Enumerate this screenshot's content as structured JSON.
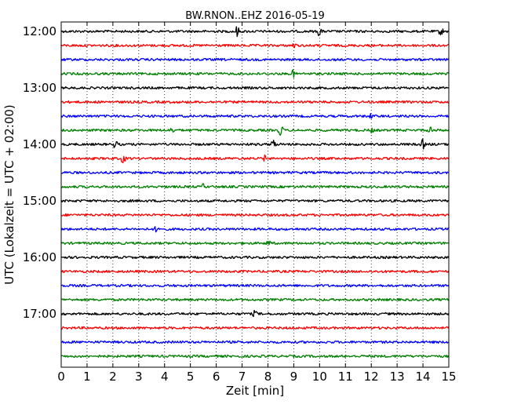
{
  "chart_data": {
    "type": "line",
    "title": "BW.RNON..EHZ 2016-05-19",
    "xlabel": "Zeit  [min]",
    "ylabel": "UTC (Lokalzeit = UTC + 02:00)",
    "xlim": [
      0,
      15
    ],
    "x_ticks": [
      "0",
      "1",
      "2",
      "3",
      "4",
      "5",
      "6",
      "7",
      "8",
      "9",
      "10",
      "11",
      "12",
      "13",
      "14",
      "15"
    ],
    "y_ticks": [
      "12:00",
      "13:00",
      "14:00",
      "15:00",
      "16:00",
      "17:00"
    ],
    "grid": "x-dotted",
    "trace_interval_min": 15,
    "first_trace": "12:00",
    "series": [
      {
        "start": "12:00",
        "color": "#000000",
        "events": [
          [
            6.8,
            7
          ],
          [
            10.0,
            7
          ],
          [
            14.7,
            5
          ]
        ]
      },
      {
        "start": "12:15",
        "color": "#ff0000",
        "events": [
          [
            9.0,
            3
          ]
        ]
      },
      {
        "start": "12:30",
        "color": "#0000ff",
        "events": []
      },
      {
        "start": "12:45",
        "color": "#008000",
        "events": [
          [
            9.0,
            5
          ]
        ]
      },
      {
        "start": "13:00",
        "color": "#000000",
        "events": []
      },
      {
        "start": "13:15",
        "color": "#ff0000",
        "events": []
      },
      {
        "start": "13:30",
        "color": "#0000ff",
        "events": [
          [
            12.0,
            3
          ]
        ]
      },
      {
        "start": "13:45",
        "color": "#008000",
        "events": [
          [
            4.3,
            3
          ],
          [
            8.5,
            9
          ],
          [
            12.0,
            3
          ],
          [
            14.3,
            4
          ]
        ]
      },
      {
        "start": "14:00",
        "color": "#000000",
        "events": [
          [
            2.1,
            5
          ],
          [
            8.2,
            7
          ],
          [
            14.0,
            6
          ]
        ]
      },
      {
        "start": "14:15",
        "color": "#ff0000",
        "events": [
          [
            2.4,
            6
          ],
          [
            7.9,
            4
          ]
        ]
      },
      {
        "start": "14:30",
        "color": "#0000ff",
        "events": []
      },
      {
        "start": "14:45",
        "color": "#008000",
        "events": [
          [
            5.5,
            3
          ]
        ]
      },
      {
        "start": "15:00",
        "color": "#000000",
        "events": []
      },
      {
        "start": "15:15",
        "color": "#ff0000",
        "events": []
      },
      {
        "start": "15:30",
        "color": "#0000ff",
        "events": [
          [
            3.7,
            4
          ]
        ]
      },
      {
        "start": "15:45",
        "color": "#008000",
        "events": [
          [
            8.0,
            4
          ]
        ]
      },
      {
        "start": "16:00",
        "color": "#000000",
        "events": []
      },
      {
        "start": "16:15",
        "color": "#ff0000",
        "events": []
      },
      {
        "start": "16:30",
        "color": "#0000ff",
        "events": []
      },
      {
        "start": "16:45",
        "color": "#008000",
        "events": []
      },
      {
        "start": "17:00",
        "color": "#000000",
        "events": [
          [
            7.5,
            4
          ]
        ]
      },
      {
        "start": "17:15",
        "color": "#ff0000",
        "events": []
      },
      {
        "start": "17:30",
        "color": "#0000ff",
        "events": []
      },
      {
        "start": "17:45",
        "color": "#008000",
        "events": []
      }
    ]
  }
}
